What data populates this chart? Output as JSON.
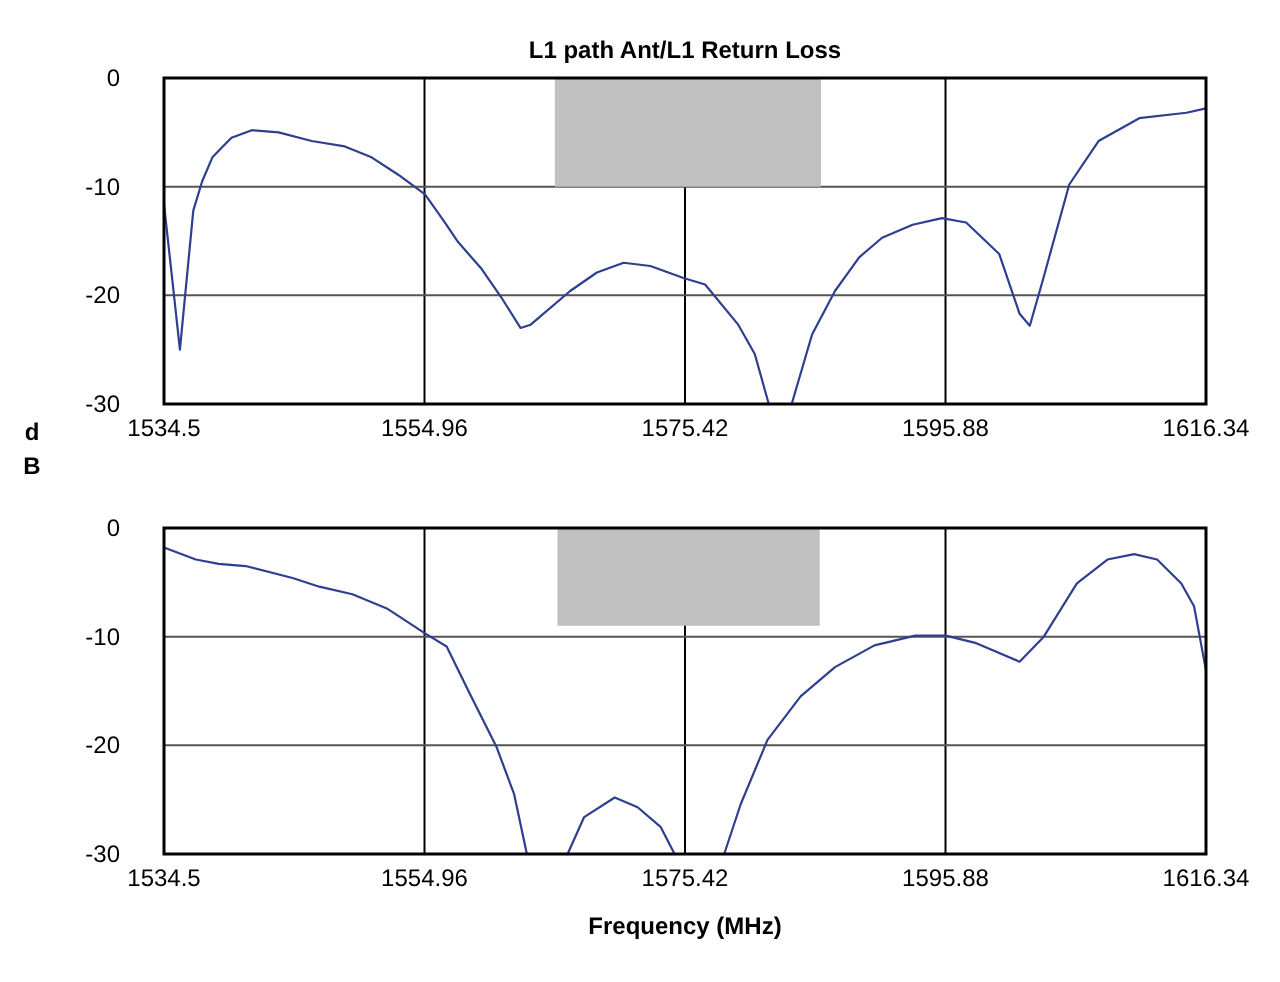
{
  "chart_data": [
    {
      "type": "line",
      "title": "L1 path Ant/L1 Return Loss",
      "ylabel": "dB",
      "grid": true,
      "xlim": [
        1534.5,
        1616.34
      ],
      "xticks": [
        1534.5,
        1554.96,
        1575.42,
        1595.88,
        1616.34
      ],
      "ylim": [
        -30,
        0
      ],
      "yticks": [
        0,
        -10,
        -20,
        -30
      ],
      "series": [
        {
          "type": "area",
          "color": "#c0c0c0",
          "x": [
            1565.2,
            1586.1
          ],
          "values": [
            -10,
            -10
          ]
        },
        {
          "color": "#2e3f8f",
          "x": [
            1534.5,
            1535.75,
            1536.8,
            1537.5,
            1538.3,
            1539.8,
            1541.4,
            1543.5,
            1546.1,
            1548.7,
            1550.8,
            1552.9,
            1555.0,
            1556.5,
            1557.6,
            1559.4,
            1561.0,
            1562.5,
            1563.3,
            1566.4,
            1568.5,
            1570.6,
            1572.7,
            1575.3,
            1577.0,
            1579.6,
            1580.9,
            1582.0,
            1583.0,
            1583.8,
            1585.4,
            1587.2,
            1589.1,
            1590.9,
            1593.3,
            1595.6,
            1597.5,
            1600.1,
            1601.7,
            1602.5,
            1603.5,
            1605.6,
            1607.9,
            1611.1,
            1614.8,
            1616.34
          ],
          "values": [
            -11.6,
            -25.0,
            -12.2,
            -9.5,
            -7.3,
            -5.5,
            -4.8,
            -5.0,
            -5.8,
            -6.3,
            -7.3,
            -8.9,
            -10.7,
            -13.2,
            -15.1,
            -17.5,
            -20.2,
            -23.0,
            -22.7,
            -19.6,
            -17.9,
            -17.0,
            -17.3,
            -18.4,
            -19.0,
            -22.7,
            -25.4,
            -30,
            null,
            -30,
            -23.6,
            -19.6,
            -16.5,
            -14.7,
            -13.5,
            -12.9,
            -13.3,
            -16.2,
            -21.7,
            -22.8,
            -18.7,
            -9.8,
            -5.8,
            -3.7,
            -3.2,
            -2.8
          ]
        }
      ]
    },
    {
      "type": "line",
      "xlabel": "Frequency (MHz)",
      "grid": true,
      "xlim": [
        1534.5,
        1616.34
      ],
      "xticks": [
        1534.5,
        1554.96,
        1575.42,
        1595.88,
        1616.34
      ],
      "ylim": [
        -30,
        0
      ],
      "yticks": [
        0,
        -10,
        -20,
        -30
      ],
      "series": [
        {
          "type": "area",
          "color": "#c0c0c0",
          "x": [
            1565.4,
            1586.0
          ],
          "values": [
            -9,
            -9
          ]
        },
        {
          "color": "#2e3f8f",
          "x": [
            1534.5,
            1537.0,
            1538.8,
            1540.9,
            1544.6,
            1546.7,
            1549.3,
            1552.0,
            1555.0,
            1556.7,
            1558.5,
            1560.6,
            1562.0,
            1563.0,
            1564.6,
            1566.2,
            1567.5,
            1569.9,
            1571.7,
            1573.5,
            1574.6,
            1576.5,
            1578.5,
            1579.8,
            1581.9,
            1584.5,
            1587.2,
            1590.3,
            1593.5,
            1595.9,
            1598.3,
            1601.7,
            1603.6,
            1606.2,
            1608.6,
            1610.7,
            1612.5,
            1614.4,
            1615.4,
            1616.34
          ],
          "values": [
            -1.8,
            -2.9,
            -3.3,
            -3.5,
            -4.6,
            -5.4,
            -6.1,
            -7.4,
            -9.7,
            -10.9,
            -15.2,
            -20.1,
            -24.5,
            -30,
            null,
            -30,
            -26.6,
            -24.8,
            -25.7,
            -27.5,
            -30,
            null,
            -30,
            -25.4,
            -19.5,
            -15.5,
            -12.8,
            -10.8,
            -9.9,
            -9.9,
            -10.6,
            -12.3,
            -10.0,
            -5.1,
            -2.9,
            -2.4,
            -2.9,
            -5.1,
            -7.2,
            -13.1
          ]
        }
      ]
    }
  ]
}
